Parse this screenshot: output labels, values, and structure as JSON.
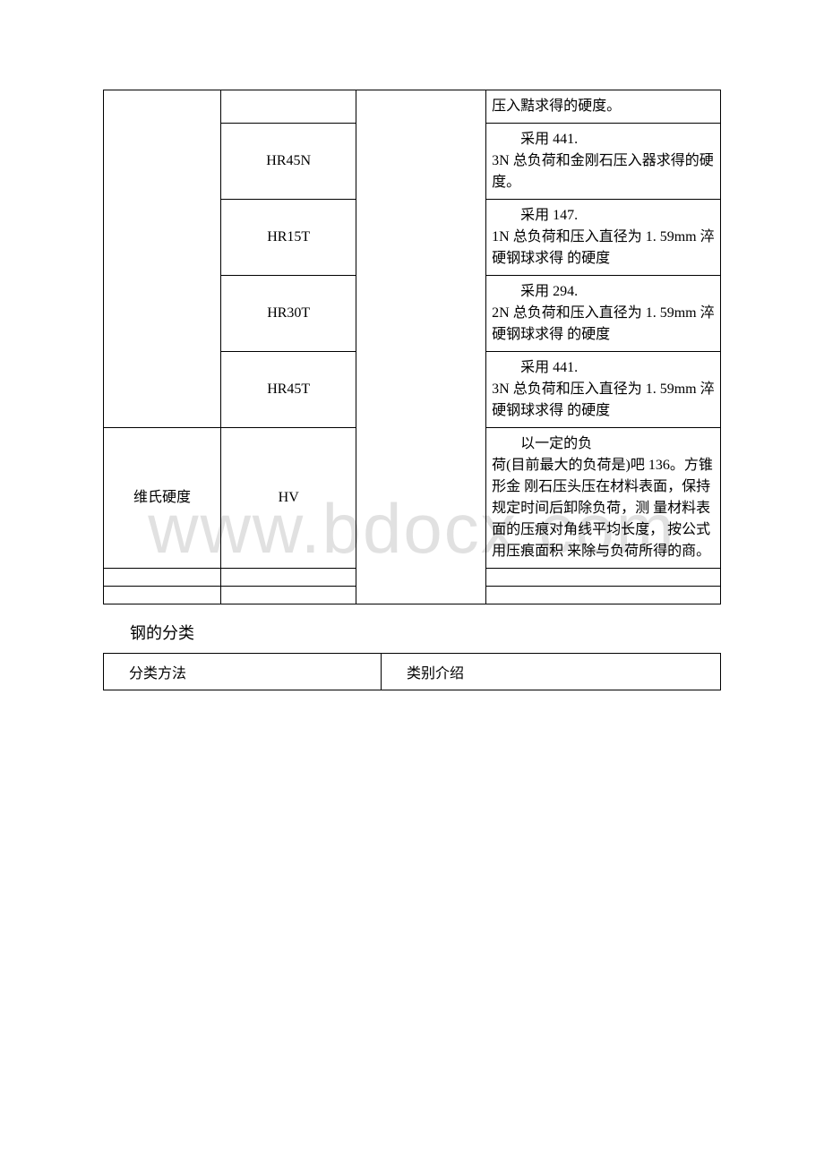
{
  "watermark": "www.bdocx.com",
  "table1": {
    "rows": [
      {
        "c2": "",
        "c4": "压入黠求得的硬度。"
      },
      {
        "c2": "HR45N",
        "c4_indent": "采用 441.",
        "c4_rest": "3N 总负荷和金刚石压入器求得的硬度。"
      },
      {
        "c2": "HR15T",
        "c4_indent": "采用 147.",
        "c4_rest": "1N 总负荷和压入直径为 1. 59mm 淬硬钢球求得 的硬度"
      },
      {
        "c2": "HR30T",
        "c4_indent": "采用 294.",
        "c4_rest": "2N 总负荷和压入直径为 1. 59mm 淬硬钢球求得 的硬度"
      },
      {
        "c2": "HR45T",
        "c4_indent": "采用 441.",
        "c4_rest": "3N 总负荷和压入直径为 1. 59mm 淬硬钢球求得 的硬度"
      }
    ],
    "vickers": {
      "c1": "维氏硬度",
      "c2": "HV",
      "c4_indent": "以一定的负",
      "c4_rest": "荷(目前最大的负荷是)吧 136。方锥形金 刚石压头压在材料表面，保持规定时间后卸除负荷，测 量材料表面的压痕对角线平均长度， 按公式用压痕面积 来除与负荷所得的商。"
    }
  },
  "section_title": "钢的分类",
  "table2": {
    "h1": "分类方法",
    "h2": "类别介绍"
  }
}
